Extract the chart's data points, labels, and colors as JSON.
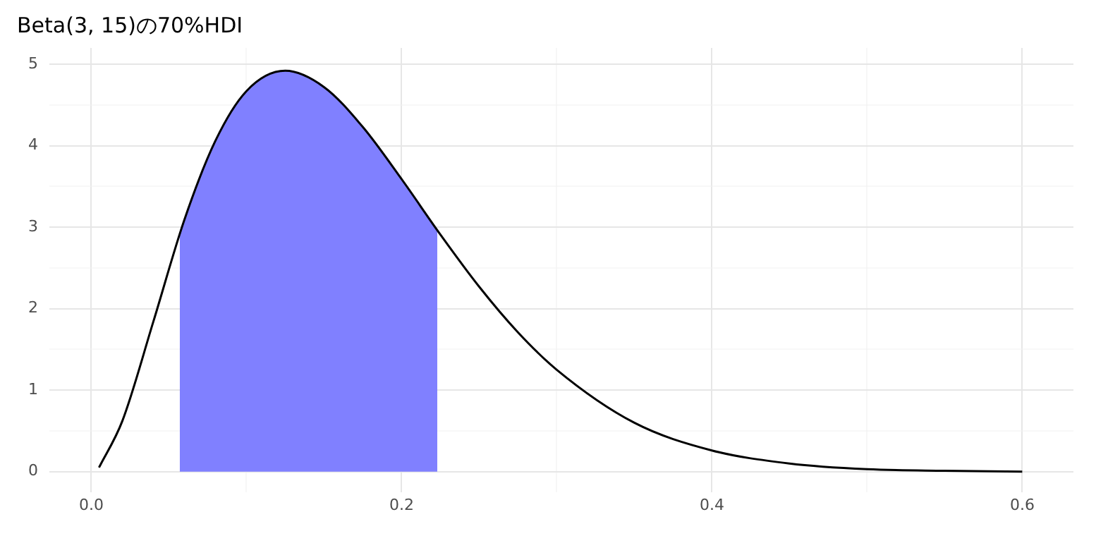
{
  "chart_data": {
    "type": "line",
    "title": "Beta(3, 15)の70%HDI",
    "series": [
      {
        "type": "area",
        "color": "#8080ff",
        "x": [
          0.057,
          0.06,
          0.08,
          0.1,
          0.125,
          0.15,
          0.175,
          0.2,
          0.223
        ],
        "values": [
          2.91,
          3.09,
          4.06,
          4.67,
          4.92,
          4.72,
          4.23,
          3.59,
          2.97
        ]
      },
      {
        "type": "line",
        "color": "#000000",
        "x": [
          0.005,
          0.02,
          0.04,
          0.06,
          0.08,
          0.1,
          0.125,
          0.15,
          0.175,
          0.2,
          0.225,
          0.25,
          0.275,
          0.3,
          0.35,
          0.4,
          0.45,
          0.5,
          0.55,
          0.6
        ],
        "values": [
          0.05,
          0.62,
          1.84,
          3.09,
          4.06,
          4.67,
          4.92,
          4.72,
          4.23,
          3.59,
          2.91,
          2.27,
          1.71,
          1.25,
          0.6,
          0.26,
          0.1,
          0.03,
          0.01,
          0.0
        ]
      }
    ],
    "xlim": [
      -0.027,
      0.633
    ],
    "ylim": [
      -0.25,
      5.2
    ],
    "xticks": [
      {
        "value": 0,
        "label": "0.0"
      },
      {
        "value": 0.1,
        "label": null
      },
      0.2,
      {
        "value": 0.3,
        "label": null
      },
      0.4,
      {
        "value": 0.5,
        "label": null
      },
      0.6
    ],
    "yticks": [
      0,
      {
        "value": 0.5,
        "label": null
      },
      1,
      {
        "value": 1.5,
        "label": null
      },
      2,
      {
        "value": 2.5,
        "label": null
      },
      3,
      {
        "value": 3.5,
        "label": null
      },
      4,
      {
        "value": 4.5,
        "label": null
      },
      5
    ],
    "grid": true,
    "legend": false,
    "marker": "none",
    "line_style": "solid"
  }
}
